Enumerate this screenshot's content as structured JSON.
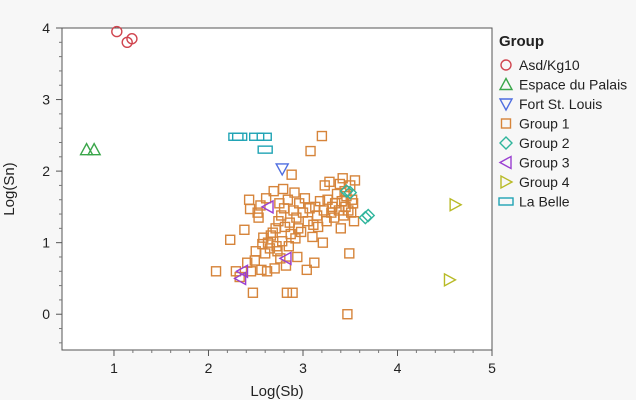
{
  "chart_data": {
    "type": "scatter",
    "xlabel": "Log(Sb)",
    "ylabel": "Log(Sn)",
    "xlim": [
      0.45,
      5.0
    ],
    "ylim": [
      -0.5,
      4.0
    ],
    "x_ticks": [
      1,
      2,
      3,
      4,
      5
    ],
    "y_ticks": [
      0,
      1,
      2,
      3,
      4
    ],
    "grid": false,
    "legend_title": "Group",
    "legend_position": "right",
    "series": [
      {
        "name": "Asd/Kg10",
        "marker": "circle",
        "color": "#d0454f",
        "points": [
          [
            1.03,
            3.95
          ],
          [
            1.14,
            3.8
          ],
          [
            1.19,
            3.85
          ]
        ]
      },
      {
        "name": "Espace du Palais",
        "marker": "triangle-up",
        "color": "#3aa64a",
        "points": [
          [
            0.71,
            2.3
          ],
          [
            0.79,
            2.3
          ]
        ]
      },
      {
        "name": "Fort St. Louis",
        "marker": "triangle-down",
        "color": "#4f6ee0",
        "points": [
          [
            2.78,
            2.03
          ]
        ]
      },
      {
        "name": "Group 1",
        "marker": "square",
        "color": "#d6843a",
        "points": [
          [
            2.08,
            0.6
          ],
          [
            2.23,
            1.04
          ],
          [
            2.29,
            0.6
          ],
          [
            2.33,
            0.52
          ],
          [
            2.38,
            1.18
          ],
          [
            2.41,
            0.72
          ],
          [
            2.43,
            1.6
          ],
          [
            2.44,
            1.47
          ],
          [
            2.45,
            0.6
          ],
          [
            2.47,
            0.3
          ],
          [
            2.49,
            0.75
          ],
          [
            2.5,
            0.88
          ],
          [
            2.52,
            1.42
          ],
          [
            2.53,
            1.35
          ],
          [
            2.55,
            1.52
          ],
          [
            2.56,
            0.62
          ],
          [
            2.57,
            0.98
          ],
          [
            2.58,
            1.07
          ],
          [
            2.6,
            0.85
          ],
          [
            2.61,
            1.62
          ],
          [
            2.62,
            0.6
          ],
          [
            2.63,
            1.0
          ],
          [
            2.65,
            0.92
          ],
          [
            2.66,
            1.1
          ],
          [
            2.68,
            1.14
          ],
          [
            2.69,
            1.72
          ],
          [
            2.7,
            0.64
          ],
          [
            2.71,
            1.2
          ],
          [
            2.72,
            0.95
          ],
          [
            2.73,
            0.88
          ],
          [
            2.74,
            1.3
          ],
          [
            2.75,
            1.55
          ],
          [
            2.76,
            0.78
          ],
          [
            2.77,
            1.38
          ],
          [
            2.78,
            1.02
          ],
          [
            2.79,
            1.75
          ],
          [
            2.8,
            1.48
          ],
          [
            2.81,
            1.22
          ],
          [
            2.82,
            0.68
          ],
          [
            2.83,
            0.3
          ],
          [
            2.84,
            1.6
          ],
          [
            2.85,
            0.95
          ],
          [
            2.86,
            1.28
          ],
          [
            2.87,
            1.12
          ],
          [
            2.88,
            1.95
          ],
          [
            2.89,
            0.3
          ],
          [
            2.9,
            1.45
          ],
          [
            2.91,
            1.7
          ],
          [
            2.92,
            1.06
          ],
          [
            2.93,
            1.35
          ],
          [
            2.94,
            0.8
          ],
          [
            2.95,
            1.2
          ],
          [
            2.96,
            1.55
          ],
          [
            2.98,
            1.15
          ],
          [
            3.0,
            1.42
          ],
          [
            3.02,
            1.62
          ],
          [
            3.04,
            0.62
          ],
          [
            3.05,
            1.3
          ],
          [
            3.07,
            1.48
          ],
          [
            3.08,
            2.28
          ],
          [
            3.1,
            1.08
          ],
          [
            3.11,
            1.25
          ],
          [
            3.12,
            0.72
          ],
          [
            3.13,
            1.5
          ],
          [
            3.15,
            1.38
          ],
          [
            3.16,
            1.22
          ],
          [
            3.18,
            1.58
          ],
          [
            3.2,
            2.49
          ],
          [
            3.21,
            1.0
          ],
          [
            3.22,
            1.45
          ],
          [
            3.23,
            1.8
          ],
          [
            3.25,
            1.3
          ],
          [
            3.26,
            1.6
          ],
          [
            3.28,
            1.85
          ],
          [
            3.3,
            1.42
          ],
          [
            3.31,
            1.5
          ],
          [
            3.33,
            1.35
          ],
          [
            3.34,
            1.55
          ],
          [
            3.36,
            1.68
          ],
          [
            3.38,
            1.45
          ],
          [
            3.39,
            1.82
          ],
          [
            3.4,
            1.2
          ],
          [
            3.41,
            1.58
          ],
          [
            3.42,
            1.9
          ],
          [
            3.43,
            1.38
          ],
          [
            3.44,
            1.72
          ],
          [
            3.45,
            1.5
          ],
          [
            3.46,
            1.65
          ],
          [
            3.47,
            0.0
          ],
          [
            3.48,
            1.45
          ],
          [
            3.49,
            0.85
          ],
          [
            3.5,
            1.8
          ],
          [
            3.51,
            1.42
          ],
          [
            3.52,
            1.6
          ],
          [
            3.53,
            1.55
          ],
          [
            3.54,
            1.3
          ],
          [
            3.55,
            1.87
          ]
        ]
      },
      {
        "name": "Group 2",
        "marker": "diamond",
        "color": "#2fb59c",
        "points": [
          [
            3.46,
            1.72
          ],
          [
            3.5,
            1.7
          ],
          [
            3.66,
            1.35
          ],
          [
            3.69,
            1.38
          ]
        ]
      },
      {
        "name": "Group 3",
        "marker": "triangle-left",
        "color": "#9a3fd1",
        "points": [
          [
            2.34,
            0.5
          ],
          [
            2.36,
            0.6
          ],
          [
            2.63,
            1.5
          ],
          [
            2.82,
            0.78
          ]
        ]
      },
      {
        "name": "Group 4",
        "marker": "triangle-right",
        "color": "#b8ba26",
        "points": [
          [
            4.55,
            0.48
          ],
          [
            4.61,
            1.53
          ]
        ]
      },
      {
        "name": "La Belle",
        "marker": "rect",
        "color": "#20a4b5",
        "points": [
          [
            2.29,
            2.48
          ],
          [
            2.33,
            2.48
          ],
          [
            2.51,
            2.48
          ],
          [
            2.59,
            2.48
          ],
          [
            2.6,
            2.3
          ]
        ]
      }
    ]
  }
}
